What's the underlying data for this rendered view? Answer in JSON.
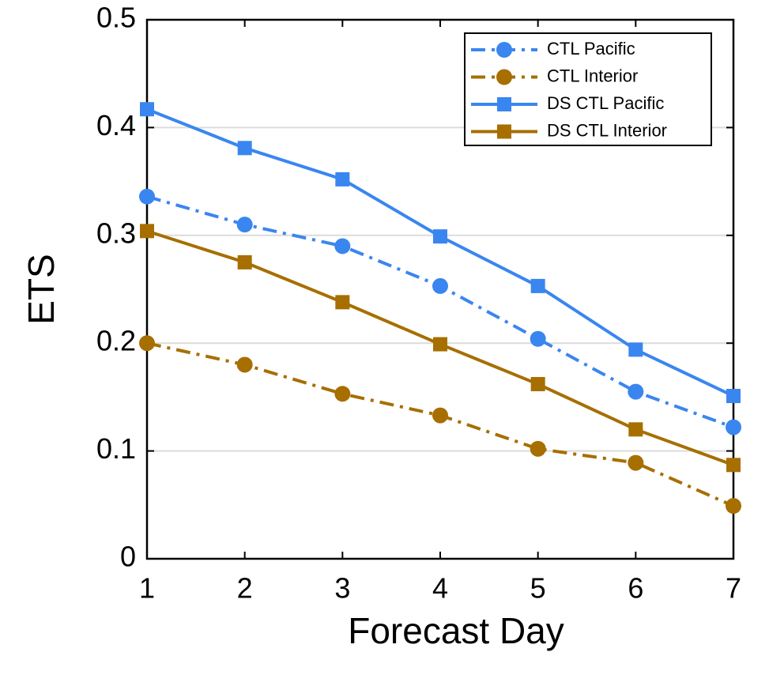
{
  "chart_data": {
    "type": "line",
    "x_label": "Forecast Day",
    "y_label": "ETS",
    "x": [
      1,
      2,
      3,
      4,
      5,
      6,
      7
    ],
    "xlim": [
      1,
      7
    ],
    "xticks": [
      1,
      2,
      3,
      4,
      5,
      6,
      7
    ],
    "ylim": [
      0,
      0.5
    ],
    "yticks": [
      0,
      0.1,
      0.2,
      0.3,
      0.4,
      0.5
    ],
    "grid": true,
    "legend_position": "upper right",
    "series": [
      {
        "name": "CTL Pacific",
        "color": "#3a86f0",
        "line_style": "dashdot",
        "marker": "circle",
        "values": [
          0.336,
          0.31,
          0.29,
          0.253,
          0.204,
          0.155,
          0.122
        ]
      },
      {
        "name": "CTL Interior",
        "color": "#a66f00",
        "line_style": "dashdot",
        "marker": "circle",
        "values": [
          0.2,
          0.18,
          0.153,
          0.133,
          0.102,
          0.089,
          0.049
        ]
      },
      {
        "name": "DS CTL Pacific",
        "color": "#3a86f0",
        "line_style": "solid",
        "marker": "square",
        "values": [
          0.417,
          0.381,
          0.352,
          0.299,
          0.253,
          0.194,
          0.151
        ]
      },
      {
        "name": "DS CTL Interior",
        "color": "#a66f00",
        "line_style": "solid",
        "marker": "square",
        "values": [
          0.304,
          0.275,
          0.238,
          0.199,
          0.162,
          0.12,
          0.087
        ]
      }
    ]
  }
}
